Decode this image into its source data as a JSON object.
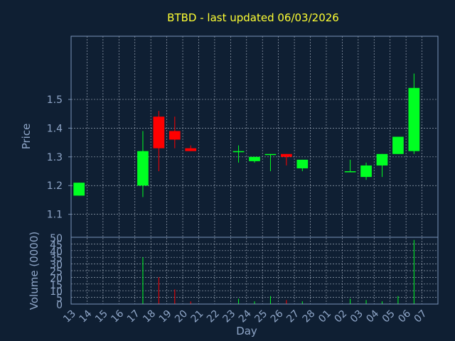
{
  "colors": {
    "background": "#0f1f33",
    "frame": "#7a93b8",
    "grid": "#c8d2e0",
    "text": "#8fa6c8",
    "title": "#ffff33",
    "up": "#00ff22",
    "down": "#ff0000"
  },
  "chart_data": {
    "type": "candlestick",
    "title": "BTBD - last updated 06/03/2026",
    "xlabel": "Day",
    "price_ylabel": "Price",
    "volume_ylabel": "Volume (0000)",
    "grid": true,
    "x_ticks": [
      "13",
      "14",
      "15",
      "16",
      "17",
      "18",
      "19",
      "20",
      "21",
      "22",
      "23",
      "24",
      "25",
      "26",
      "27",
      "28",
      "01",
      "02",
      "03",
      "04",
      "05",
      "06",
      "07"
    ],
    "price_ylim": [
      1.02,
      1.72
    ],
    "price_ticks": [
      "1.1",
      "1.2",
      "1.3",
      "1.4",
      "1.5"
    ],
    "volume_ylim": [
      0,
      50
    ],
    "volume_ticks": [
      "0",
      "5",
      "10",
      "15",
      "20",
      "25",
      "30",
      "35",
      "40",
      "45",
      "50"
    ],
    "candles": [
      {
        "day": "13",
        "open": 1.165,
        "high": 1.21,
        "low": 1.165,
        "close": 1.21,
        "volume": 0
      },
      {
        "day": "17",
        "open": 1.2,
        "high": 1.39,
        "low": 1.16,
        "close": 1.32,
        "volume": 35
      },
      {
        "day": "18",
        "open": 1.44,
        "high": 1.46,
        "low": 1.25,
        "close": 1.33,
        "volume": 20
      },
      {
        "day": "19",
        "open": 1.39,
        "high": 1.44,
        "low": 1.33,
        "close": 1.36,
        "volume": 11
      },
      {
        "day": "20",
        "open": 1.33,
        "high": 1.34,
        "low": 1.32,
        "close": 1.32,
        "volume": 2
      },
      {
        "day": "23",
        "open": 1.32,
        "high": 1.34,
        "low": 1.28,
        "close": 1.32,
        "volume": 4
      },
      {
        "day": "24",
        "open": 1.285,
        "high": 1.3,
        "low": 1.28,
        "close": 1.3,
        "volume": 2
      },
      {
        "day": "25",
        "open": 1.31,
        "high": 1.31,
        "low": 1.25,
        "close": 1.31,
        "volume": 6
      },
      {
        "day": "26",
        "open": 1.31,
        "high": 1.31,
        "low": 1.27,
        "close": 1.3,
        "volume": 3
      },
      {
        "day": "27",
        "open": 1.26,
        "high": 1.29,
        "low": 1.25,
        "close": 1.29,
        "volume": 2
      },
      {
        "day": "02",
        "open": 1.25,
        "high": 1.29,
        "low": 1.25,
        "close": 1.25,
        "volume": 4
      },
      {
        "day": "03",
        "open": 1.23,
        "high": 1.28,
        "low": 1.22,
        "close": 1.27,
        "volume": 3
      },
      {
        "day": "04",
        "open": 1.27,
        "high": 1.31,
        "low": 1.23,
        "close": 1.31,
        "volume": 2
      },
      {
        "day": "05",
        "open": 1.31,
        "high": 1.37,
        "low": 1.31,
        "close": 1.37,
        "volume": 6
      },
      {
        "day": "06",
        "open": 1.32,
        "high": 1.59,
        "low": 1.31,
        "close": 1.54,
        "volume": 48
      }
    ]
  }
}
